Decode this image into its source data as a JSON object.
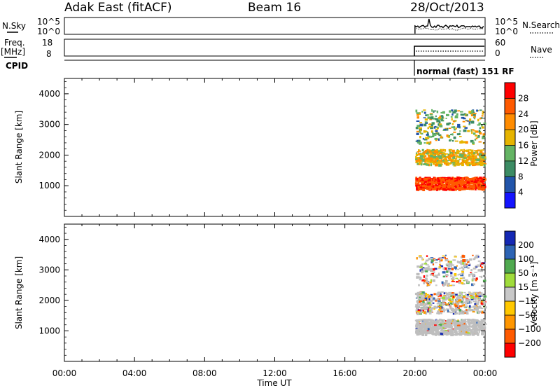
{
  "header": {
    "station": "Adak East (fitACF)",
    "beam": "Beam 16",
    "date": "28/Oct/2013"
  },
  "summary_panels": {
    "nsky_label": "N.Sky",
    "nsky_ticks": [
      "10^5",
      "10^0"
    ],
    "nsearch_label": "N.Search",
    "nsearch_ticks": [
      "10^5",
      "10^0"
    ],
    "freq_label_1": "Freq.",
    "freq_label_2": "[MHz]",
    "freq_ticks": [
      "18",
      "8"
    ],
    "nave_label": "Nave",
    "nave_ticks": [
      "60",
      "0"
    ],
    "cpid_label": "CPID",
    "cpid_text": "normal (fast) 151 RF"
  },
  "colors": {
    "power_scale": [
      "#1414ff",
      "#2255aa",
      "#3c8c64",
      "#64b464",
      "#e6b400",
      "#ff8c00",
      "#ff5a00",
      "#ff0000"
    ],
    "velocity_scale": [
      "#1428b4",
      "#2d64b4",
      "#50aa50",
      "#a0dc3c",
      "#c8c8c8",
      "#ffc800",
      "#ff9600",
      "#ff5a00",
      "#ff0000"
    ],
    "ground_scatter": "#bebebe"
  },
  "chart_data": [
    {
      "type": "heatmap",
      "title": "",
      "xlabel": "Time UT",
      "ylabel": "Slant Range [km]",
      "x_ticks": [
        "00:00",
        "04:00",
        "08:00",
        "12:00",
        "16:00",
        "20:00",
        "00:00"
      ],
      "x_range_hours": [
        0,
        24
      ],
      "ylim": [
        0,
        4500
      ],
      "y_ticks": [
        1000,
        2000,
        3000,
        4000
      ],
      "data_start_hour": 20.0,
      "colorbar": {
        "label": "Power [dB]",
        "ticks": [
          "28",
          "24",
          "20",
          "16",
          "12",
          "8",
          "4"
        ],
        "range": [
          0,
          32
        ]
      },
      "scatter_bands": [
        {
          "range_km": [
            900,
            1300
          ],
          "power_db": [
            24,
            30
          ]
        },
        {
          "range_km": [
            1700,
            2200
          ],
          "power_db": [
            14,
            24
          ]
        },
        {
          "range_km": [
            2400,
            3500
          ],
          "power_db": [
            6,
            22
          ]
        }
      ]
    },
    {
      "type": "heatmap",
      "title": "",
      "xlabel": "Time UT",
      "ylabel": "Slant Range [km]",
      "x_ticks": [
        "00:00",
        "04:00",
        "08:00",
        "12:00",
        "16:00",
        "20:00",
        "00:00"
      ],
      "x_range_hours": [
        0,
        24
      ],
      "ylim": [
        0,
        4500
      ],
      "y_ticks": [
        1000,
        2000,
        3000,
        4000
      ],
      "data_start_hour": 20.0,
      "colorbar": {
        "label": "Velocity [m s⁻¹]",
        "ticks": [
          "200",
          "100",
          "50",
          "15",
          "−15",
          "−50",
          "−100",
          "−200"
        ]
      },
      "scatter_bands": [
        {
          "range_km": [
            900,
            1400
          ],
          "velocity_ms": [
            -15,
            15
          ],
          "ground_scatter": true
        },
        {
          "range_km": [
            1600,
            2300
          ],
          "velocity_ms": [
            -100,
            100
          ]
        },
        {
          "range_km": [
            2500,
            3500
          ],
          "velocity_ms": [
            -200,
            200
          ]
        }
      ]
    }
  ]
}
